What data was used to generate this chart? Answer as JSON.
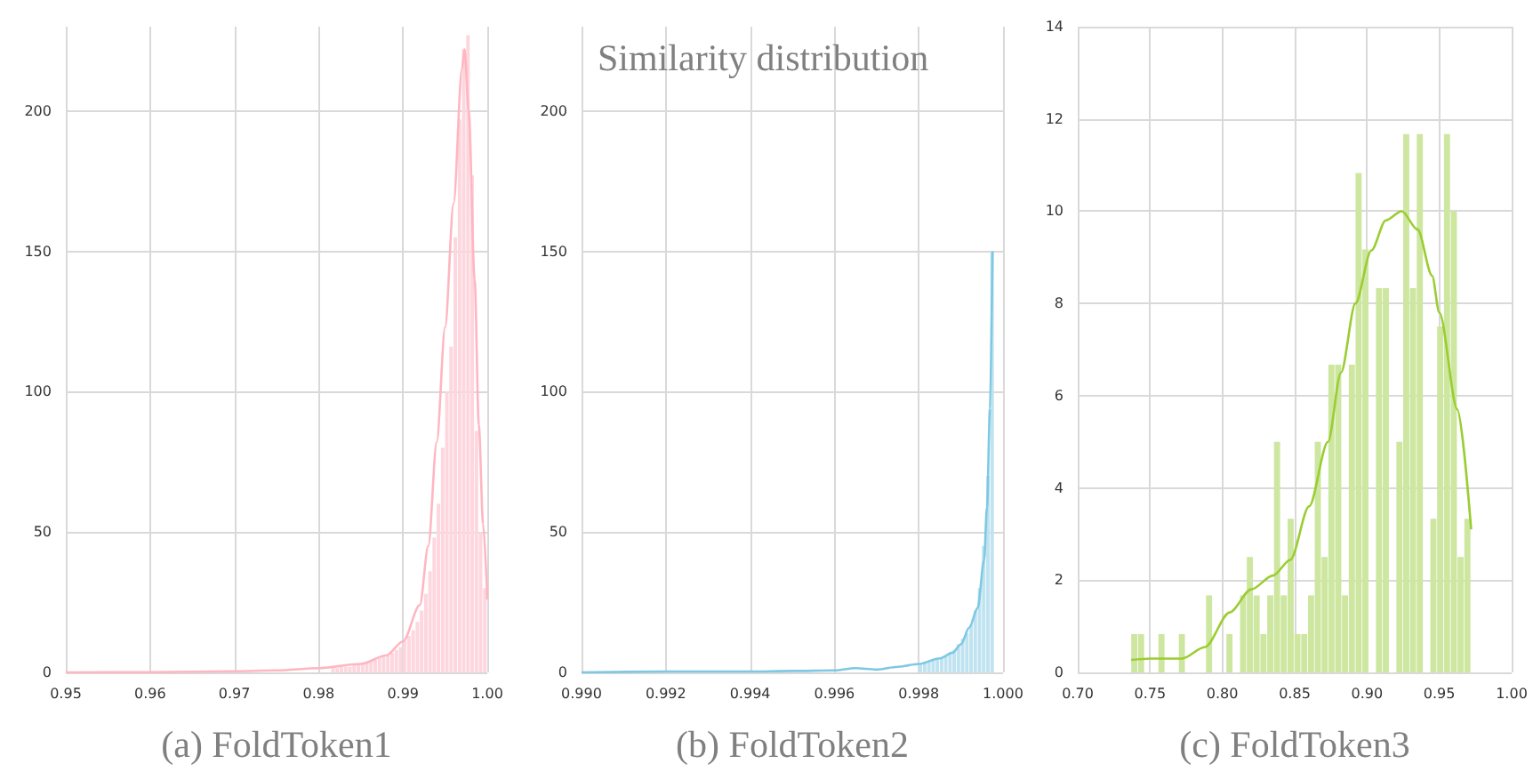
{
  "chart_data": [
    {
      "type": "histogram",
      "xlabel": "(a) FoldToken1",
      "xlim": [
        0.95,
        1.0
      ],
      "xticks": [
        0.95,
        0.96,
        0.97,
        0.98,
        0.99,
        {
          "value": 1.0,
          "label": "1.00"
        }
      ],
      "ylim": [
        0,
        230
      ],
      "yticks": [
        0,
        50,
        100,
        150,
        200
      ],
      "grid": true,
      "series": [
        {
          "type": "histogram",
          "color": "#fdd6de",
          "bins": [
            0.98,
            0.9805,
            0.981,
            0.9815,
            0.982,
            0.9825,
            0.983,
            0.9835,
            0.984,
            0.9845,
            0.985,
            0.9855,
            0.986,
            0.9865,
            0.987,
            0.9875,
            0.988,
            0.9885,
            0.989,
            0.9895,
            0.99,
            0.9905,
            0.991,
            0.9915,
            0.992,
            0.9925,
            0.993,
            0.9935,
            0.994,
            0.9945,
            0.995,
            0.9955,
            0.996,
            0.9965,
            0.997,
            0.9975,
            0.998,
            0.9985,
            0.999,
            0.9995,
            1.0
          ],
          "values": [
            null,
            null,
            null,
            1.5,
            1.5,
            2,
            2,
            2,
            2.5,
            3,
            3,
            3.5,
            4,
            4.5,
            5,
            5.5,
            6,
            7,
            8,
            9,
            11,
            13,
            15,
            18,
            22,
            28,
            36,
            48,
            60,
            80,
            100,
            116,
            155,
            197,
            222,
            227,
            177,
            86,
            50,
            30
          ]
        },
        {
          "type": "line",
          "color": "#ffb6c1",
          "marker": "none",
          "x": [
            0.95,
            0.96,
            0.97,
            0.975,
            0.98,
            0.985,
            0.988,
            0.99,
            0.992,
            0.993,
            0.994,
            0.995,
            0.996,
            0.997,
            0.9973,
            0.9978,
            0.9985,
            0.999,
            0.9995,
            1.0
          ],
          "values": [
            0,
            0.1,
            0.4,
            0.7,
            1.5,
            3,
            6,
            11,
            24,
            45,
            82,
            123,
            167,
            215,
            222,
            200,
            140,
            88,
            53,
            26
          ]
        }
      ]
    },
    {
      "type": "histogram",
      "title": "Similarity distribution",
      "xlabel": "(b) FoldToken2",
      "xlim": [
        0.99,
        1.0
      ],
      "xticks": [
        {
          "value": 0.99,
          "label": "0.990"
        },
        0.992,
        0.994,
        0.996,
        0.998,
        {
          "value": 1.0,
          "label": "1.000"
        }
      ],
      "ylim": [
        0,
        230
      ],
      "yticks": [
        0,
        50,
        100,
        150,
        200
      ],
      "grid": true,
      "series": [
        {
          "type": "histogram",
          "color": "#bfe3f1",
          "bins": [
            0.998,
            0.9981,
            0.9982,
            0.9983,
            0.9984,
            0.9985,
            0.9986,
            0.9987,
            0.9988,
            0.9989,
            0.999,
            0.9991,
            0.9992,
            0.9993,
            0.9994,
            0.9995,
            0.9996,
            0.9997,
            0.9998,
            0.9999,
            1.0
          ],
          "values": [
            3,
            3.5,
            4,
            4.5,
            5,
            5,
            6,
            7,
            8,
            10,
            12,
            14,
            17,
            22,
            30,
            45,
            70,
            150,
            null,
            null
          ]
        },
        {
          "type": "line",
          "color": "#7ec8e3",
          "marker": "none",
          "x": [
            0.99,
            0.992,
            0.994,
            0.995,
            0.996,
            0.9965,
            0.997,
            0.9975,
            0.998,
            0.9985,
            0.9988,
            0.999,
            0.9992,
            0.9994,
            0.99955,
            0.99962,
            0.99969,
            0.99975
          ],
          "values": [
            0,
            0.3,
            0.3,
            0.5,
            0.7,
            1.5,
            1,
            2,
            3,
            5,
            7,
            10,
            16,
            23,
            40,
            59,
            94,
            150
          ]
        }
      ]
    },
    {
      "type": "histogram",
      "xlabel": "(c) FoldToken3",
      "xlim": [
        0.7,
        1.0
      ],
      "xticks": [
        {
          "value": 0.7,
          "label": "0.70"
        },
        0.75,
        {
          "value": 0.8,
          "label": "0.80"
        },
        0.85,
        {
          "value": 0.9,
          "label": "0.90"
        },
        0.95,
        {
          "value": 1.0,
          "label": "1.00"
        }
      ],
      "ylim": [
        0,
        14
      ],
      "yticks": [
        0,
        2,
        4,
        6,
        8,
        10,
        12,
        14
      ],
      "grid": true,
      "series": [
        {
          "type": "histogram",
          "color": "#cde6a0",
          "bins": [
            0.737,
            0.7417,
            0.7464,
            0.7511,
            0.7558,
            0.7605,
            0.7652,
            0.7699,
            0.7746,
            0.7793,
            0.784,
            0.7887,
            0.7934,
            0.7981,
            0.8028,
            0.8075,
            0.8122,
            0.8169,
            0.8216,
            0.8263,
            0.831,
            0.8357,
            0.8404,
            0.8451,
            0.8498,
            0.8545,
            0.8592,
            0.8639,
            0.8686,
            0.8733,
            0.878,
            0.8827,
            0.8874,
            0.8921,
            0.8968,
            0.9015,
            0.9062,
            0.9109,
            0.9156,
            0.9203,
            0.925,
            0.9297,
            0.9344,
            0.9391,
            0.9438,
            0.9485,
            0.9532,
            0.9579,
            0.9626,
            0.9673,
            0.972
          ],
          "values": [
            0.83,
            0.83,
            0,
            0,
            0.83,
            0,
            0,
            0.83,
            0,
            0,
            0,
            1.67,
            0,
            0,
            0.83,
            0,
            1.67,
            2.5,
            1.67,
            0.83,
            1.67,
            5,
            1.67,
            3.33,
            0.83,
            0.83,
            1.67,
            5,
            2.5,
            6.67,
            6.67,
            1.67,
            6.67,
            10.83,
            9.17,
            null,
            8.33,
            8.33,
            null,
            5,
            11.67,
            8.33,
            11.67,
            null,
            3.33,
            7.5,
            11.67,
            10,
            2.5,
            3.33
          ]
        },
        {
          "type": "line",
          "color": "#9acd32",
          "marker": "none",
          "x": [
            0.737,
            0.75,
            0.772,
            0.788,
            0.805,
            0.82,
            0.835,
            0.847,
            0.86,
            0.873,
            0.882,
            0.892,
            0.903,
            0.913,
            0.924,
            0.935,
            0.945,
            0.95,
            0.9625,
            0.972
          ],
          "values": [
            0.27,
            0.3,
            0.3,
            0.55,
            1.3,
            1.8,
            2.1,
            2.44,
            3.6,
            5,
            6.5,
            8,
            9.15,
            9.8,
            10,
            9.6,
            8.6,
            7.8,
            5.7,
            3.1
          ]
        }
      ]
    }
  ]
}
